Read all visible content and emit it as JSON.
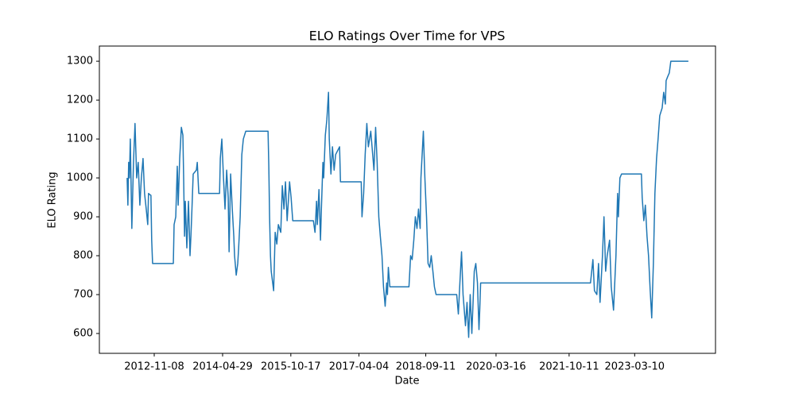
{
  "chart_data": {
    "type": "line",
    "title": "ELO Ratings Over Time for VPS",
    "x_label": "Date",
    "y_label": "ELO Rating",
    "color": "#1f77b4",
    "grid": false,
    "x": [
      "2012-04-09",
      "2012-04-15",
      "2012-04-21",
      "2012-04-27",
      "2012-05-04",
      "2012-05-16",
      "2012-05-29",
      "2012-06-10",
      "2012-06-23",
      "2012-07-05",
      "2012-07-18",
      "2012-07-30",
      "2012-08-12",
      "2012-08-24",
      "2012-09-06",
      "2012-09-18",
      "2012-09-24",
      "2012-10-13",
      "2012-10-19",
      "2012-10-26",
      "2013-04-07",
      "2013-04-13",
      "2013-04-26",
      "2013-05-08",
      "2013-05-15",
      "2013-05-27",
      "2013-06-09",
      "2013-06-21",
      "2013-06-27",
      "2013-07-04",
      "2013-07-10",
      "2013-07-22",
      "2013-08-04",
      "2013-08-16",
      "2013-08-23",
      "2013-08-29",
      "2013-09-10",
      "2013-10-05",
      "2013-10-12",
      "2013-10-24",
      "2014-04-05",
      "2014-04-11",
      "2014-04-23",
      "2014-05-06",
      "2014-05-18",
      "2014-05-31",
      "2014-06-12",
      "2014-06-19",
      "2014-07-01",
      "2014-07-14",
      "2014-07-26",
      "2014-08-01",
      "2014-08-14",
      "2014-08-26",
      "2014-09-02",
      "2014-09-14",
      "2014-09-27",
      "2014-10-09",
      "2014-10-28",
      "2015-04-21",
      "2015-04-27",
      "2015-05-03",
      "2015-05-10",
      "2015-05-16",
      "2015-06-04",
      "2015-06-16",
      "2015-06-29",
      "2015-07-11",
      "2015-07-30",
      "2015-08-11",
      "2015-08-24",
      "2015-09-05",
      "2015-09-18",
      "2015-10-07",
      "2015-10-19",
      "2015-11-01",
      "2016-04-11",
      "2016-04-24",
      "2016-05-06",
      "2016-05-12",
      "2016-05-25",
      "2016-06-06",
      "2016-06-13",
      "2016-06-25",
      "2016-07-01",
      "2016-07-14",
      "2016-07-26",
      "2016-08-08",
      "2016-08-14",
      "2016-08-27",
      "2016-09-08",
      "2016-09-21",
      "2016-10-03",
      "2016-11-03",
      "2016-11-10",
      "2017-04-22",
      "2017-04-28",
      "2017-05-11",
      "2017-05-23",
      "2017-06-05",
      "2017-06-17",
      "2017-07-06",
      "2017-07-31",
      "2017-08-13",
      "2017-08-25",
      "2017-09-07",
      "2017-09-19",
      "2017-10-02",
      "2017-10-14",
      "2017-10-27",
      "2017-11-08",
      "2017-11-14",
      "2017-11-21",
      "2017-12-03",
      "2018-05-02",
      "2018-05-15",
      "2018-05-27",
      "2018-06-09",
      "2018-06-21",
      "2018-07-04",
      "2018-07-16",
      "2018-07-29",
      "2018-08-04",
      "2018-08-23",
      "2018-09-04",
      "2018-09-17",
      "2018-09-29",
      "2018-10-12",
      "2018-10-24",
      "2018-11-06",
      "2018-11-18",
      "2018-12-01",
      "2019-05-12",
      "2019-05-25",
      "2019-06-06",
      "2019-06-19",
      "2019-07-01",
      "2019-07-20",
      "2019-08-01",
      "2019-08-14",
      "2019-08-26",
      "2019-09-08",
      "2019-09-27",
      "2019-10-09",
      "2019-10-22",
      "2019-11-03",
      "2019-11-09",
      "2019-11-16",
      "2022-03-28",
      "2022-04-16",
      "2022-04-28",
      "2022-05-17",
      "2022-05-30",
      "2022-06-11",
      "2022-06-30",
      "2022-07-12",
      "2022-07-25",
      "2022-08-06",
      "2022-08-25",
      "2022-09-07",
      "2022-09-25",
      "2022-10-14",
      "2022-10-27",
      "2022-11-02",
      "2022-11-14",
      "2022-11-27",
      "2023-05-02",
      "2023-05-08",
      "2023-05-21",
      "2023-06-02",
      "2023-06-15",
      "2023-06-27",
      "2023-07-10",
      "2023-07-22",
      "2023-08-04",
      "2023-08-16",
      "2023-08-29",
      "2023-09-10",
      "2023-09-23",
      "2023-10-12",
      "2023-10-24",
      "2023-11-06",
      "2023-11-12",
      "2023-11-24",
      "2023-12-07",
      "2023-12-19",
      "2024-05-05"
    ],
    "values": [
      1000,
      930,
      1040,
      1000,
      1100,
      870,
      1040,
      1140,
      1000,
      1040,
      930,
      1000,
      1050,
      960,
      920,
      880,
      960,
      955,
      840,
      780,
      780,
      880,
      900,
      1030,
      930,
      1050,
      1130,
      1110,
      1000,
      850,
      940,
      820,
      940,
      800,
      850,
      900,
      1010,
      1020,
      1040,
      960,
      960,
      1050,
      1100,
      1000,
      920,
      1020,
      950,
      810,
      1010,
      920,
      850,
      800,
      750,
      780,
      820,
      900,
      1060,
      1100,
      1120,
      1120,
      1030,
      900,
      800,
      760,
      710,
      860,
      830,
      880,
      860,
      980,
      920,
      990,
      890,
      990,
      950,
      890,
      890,
      860,
      940,
      880,
      970,
      840,
      920,
      1040,
      1000,
      1110,
      1150,
      1220,
      1100,
      1010,
      1080,
      1020,
      1060,
      1080,
      990,
      990,
      900,
      960,
      1060,
      1140,
      1080,
      1120,
      1020,
      1130,
      1040,
      900,
      850,
      800,
      720,
      670,
      730,
      700,
      770,
      720,
      720,
      800,
      790,
      840,
      900,
      870,
      920,
      870,
      1000,
      1120,
      1000,
      900,
      780,
      770,
      800,
      760,
      720,
      700,
      700,
      650,
      730,
      810,
      700,
      620,
      680,
      590,
      700,
      600,
      760,
      780,
      730,
      610,
      660,
      730,
      730,
      790,
      710,
      700,
      780,
      680,
      800,
      900,
      760,
      800,
      840,
      720,
      660,
      800,
      960,
      900,
      1000,
      1010,
      1010,
      950,
      890,
      930,
      850,
      800,
      710,
      640,
      780,
      960,
      1050,
      1100,
      1160,
      1180,
      1220,
      1190,
      1250,
      1260,
      1270,
      1300,
      1300
    ],
    "xlim": [
      "2011-09-04",
      "2024-12-04"
    ],
    "xticks": [
      "2012-11-08",
      "2014-04-29",
      "2015-10-17",
      "2017-04-04",
      "2018-09-11",
      "2020-03-16",
      "2021-10-11",
      "2023-03-10"
    ],
    "ylim": [
      549,
      1339
    ],
    "yticks": [
      600,
      700,
      800,
      900,
      1000,
      1100,
      1200,
      1300
    ]
  }
}
